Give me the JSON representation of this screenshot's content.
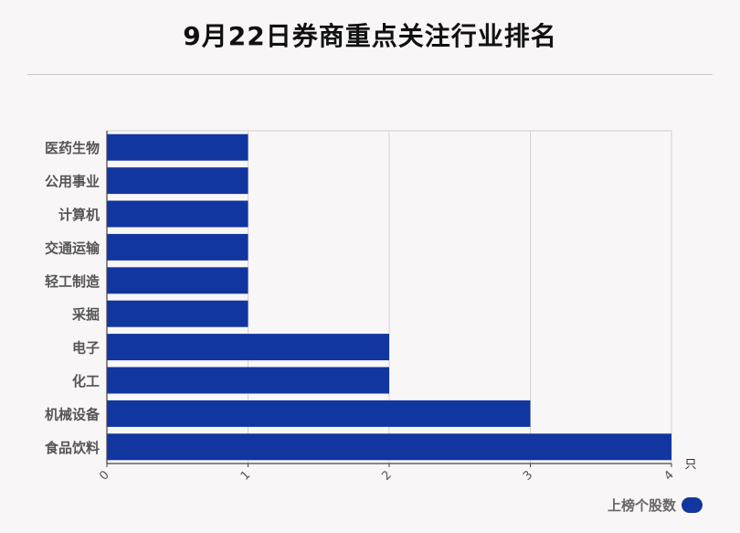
{
  "title": "9月22日券商重点关注行业排名",
  "chart_data": {
    "type": "bar",
    "orientation": "horizontal",
    "title": "9月22日券商重点关注行业排名",
    "categories": [
      "医药生物",
      "公用事业",
      "计算机",
      "交通运输",
      "轻工制造",
      "采掘",
      "电子",
      "化工",
      "机械设备",
      "食品饮料"
    ],
    "series": [
      {
        "name": "上榜个股数",
        "values": [
          1,
          1,
          1,
          1,
          1,
          1,
          2,
          2,
          3,
          4
        ],
        "color": "#1236a0"
      }
    ],
    "xlim": [
      0,
      4
    ],
    "xticks": [
      "0",
      "1",
      "2",
      "3",
      "4"
    ],
    "xunit": "只",
    "grid": true,
    "legend_position": "bottom-right"
  }
}
